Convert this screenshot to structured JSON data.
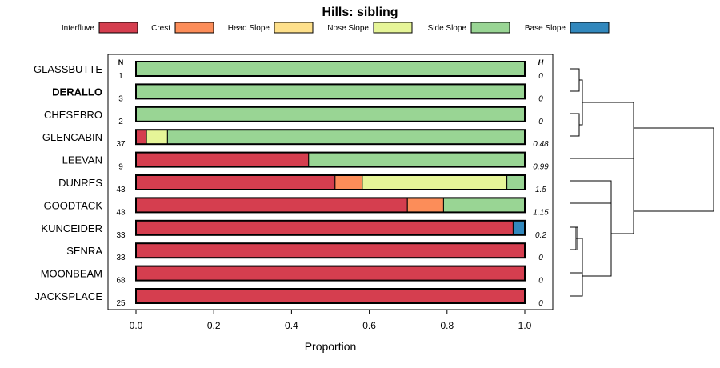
{
  "chart_data": {
    "type": "bar",
    "subtype": "stacked-horizontal-proportion",
    "title": "Hills: sibling",
    "xlabel": "Proportion",
    "xlim": [
      0,
      1
    ],
    "xticks": [
      "0.0",
      "0.2",
      "0.4",
      "0.6",
      "0.8",
      "1.0"
    ],
    "n_header": "N",
    "h_header": "H",
    "legend_placement": "top",
    "series": [
      {
        "name": "Interfluve",
        "color": "#d53e4f"
      },
      {
        "name": "Crest",
        "color": "#fc8d59"
      },
      {
        "name": "Head Slope",
        "color": "#fee08b"
      },
      {
        "name": "Nose Slope",
        "color": "#e6f598"
      },
      {
        "name": "Side Slope",
        "color": "#99d594"
      },
      {
        "name": "Base Slope",
        "color": "#3288bd"
      }
    ],
    "categories": [
      {
        "name": "GLASSBUTTE",
        "n": "1",
        "h": "0",
        "bold": false,
        "values": [
          0,
          0,
          0,
          0,
          1.0,
          0
        ]
      },
      {
        "name": "DERALLO",
        "n": "3",
        "h": "0",
        "bold": true,
        "values": [
          0,
          0,
          0,
          0,
          1.0,
          0
        ]
      },
      {
        "name": "CHESEBRO",
        "n": "2",
        "h": "0",
        "bold": false,
        "values": [
          0,
          0,
          0,
          0,
          1.0,
          0
        ]
      },
      {
        "name": "GLENCABIN",
        "n": "37",
        "h": "0.48",
        "bold": false,
        "values": [
          0.027,
          0,
          0,
          0.054,
          0.919,
          0
        ]
      },
      {
        "name": "LEEVAN",
        "n": "9",
        "h": "0.99",
        "bold": false,
        "values": [
          0.444,
          0,
          0,
          0,
          0.556,
          0
        ]
      },
      {
        "name": "DUNRES",
        "n": "43",
        "h": "1.5",
        "bold": false,
        "values": [
          0.512,
          0.07,
          0,
          0.372,
          0.046,
          0
        ]
      },
      {
        "name": "GOODTACK",
        "n": "43",
        "h": "1.15",
        "bold": false,
        "values": [
          0.698,
          0.093,
          0,
          0,
          0.209,
          0
        ]
      },
      {
        "name": "KUNCEIDER",
        "n": "33",
        "h": "0.2",
        "bold": false,
        "values": [
          0.97,
          0,
          0,
          0,
          0,
          0.03
        ]
      },
      {
        "name": "SENRA",
        "n": "33",
        "h": "0",
        "bold": false,
        "values": [
          1.0,
          0,
          0,
          0,
          0,
          0
        ]
      },
      {
        "name": "MOONBEAM",
        "n": "68",
        "h": "0",
        "bold": false,
        "values": [
          1.0,
          0,
          0,
          0,
          0,
          0
        ]
      },
      {
        "name": "JACKSPLACE",
        "n": "25",
        "h": "0",
        "bold": false,
        "values": [
          1.0,
          0,
          0,
          0,
          0,
          0
        ]
      }
    ],
    "dendrogram": true
  }
}
